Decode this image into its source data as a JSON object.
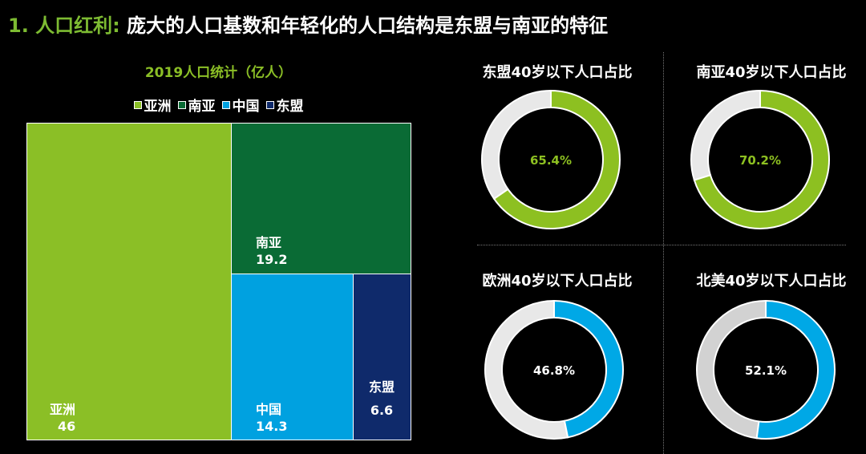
{
  "header": {
    "prefix": "1. 人口红利:",
    "title": "庞大的人口基数和年轻化的人口结构是东盟与南亚的特征"
  },
  "colors": {
    "asia": "#8bbf26",
    "south_asia": "#0a6b35",
    "china": "#00a1e0",
    "asean": "#0f2a6b",
    "green": "#8dc021",
    "blue": "#00a8e6",
    "grey": "#e8e8e8",
    "grey2": "#d2d2d2"
  },
  "chart_data": [
    {
      "type": "treemap",
      "title": "2019人口统计（亿人）",
      "legend": [
        "亚洲",
        "南亚",
        "中国",
        "东盟"
      ],
      "categories": [
        "亚洲",
        "南亚",
        "中国",
        "东盟"
      ],
      "values": [
        46,
        19.2,
        14.3,
        6.6
      ],
      "labels": [
        "46",
        "19.2",
        "14.3",
        "6.6"
      ]
    },
    {
      "type": "pie",
      "title": "东盟40岁以下人口占比",
      "value": 65.4,
      "label": "65.4%"
    },
    {
      "type": "pie",
      "title": "南亚40岁以下人口占比",
      "value": 70.2,
      "label": "70.2%"
    },
    {
      "type": "pie",
      "title": "欧洲40岁以下人口占比",
      "value": 46.8,
      "label": "46.8%"
    },
    {
      "type": "pie",
      "title": "北美40岁以下人口占比",
      "value": 52.1,
      "label": "52.1%"
    }
  ]
}
